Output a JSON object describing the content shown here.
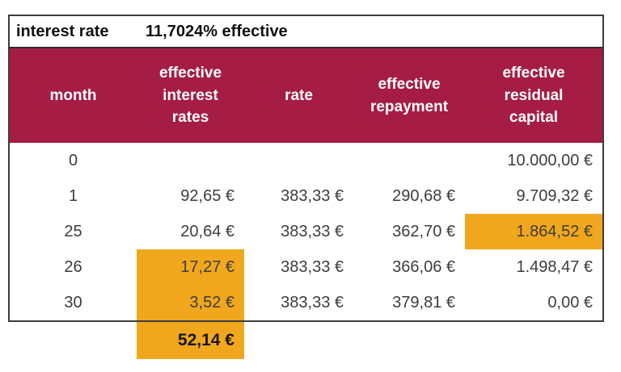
{
  "title_bar": {
    "label": "interest rate",
    "value": "11,7024% effective"
  },
  "colors": {
    "header_bg": "#a51c45",
    "header_text": "#ffffff",
    "highlight": "#f1a71d",
    "border": "#3c3c3c",
    "data_text": "#3d3d3d"
  },
  "table": {
    "headers": {
      "month": "month",
      "interest": "effective\ninterest\nrates",
      "rate": "rate",
      "repayment": "effective\nrepayment",
      "residual": "effective\nresidual\ncapital"
    },
    "rows": [
      {
        "month": "0",
        "interest": "",
        "rate": "",
        "repayment": "",
        "residual": "10.000,00 €"
      },
      {
        "month": "1",
        "interest": "92,65 €",
        "rate": "383,33 €",
        "repayment": "290,68 €",
        "residual": "9.709,32 €"
      },
      {
        "month": "25",
        "interest": "20,64 €",
        "rate": "383,33 €",
        "repayment": "362,70 €",
        "residual": "1.864,52 €"
      },
      {
        "month": "26",
        "interest": "17,27 €",
        "rate": "383,33 €",
        "repayment": "366,06 €",
        "residual": "1.498,47 €"
      },
      {
        "month": "30",
        "interest": "3,52 €",
        "rate": "383,33 €",
        "repayment": "379,81 €",
        "residual": "0,00 €"
      }
    ],
    "highlighted_cells": [
      {
        "row": "25",
        "column": "residual"
      },
      {
        "row": "26",
        "column": "interest"
      },
      {
        "row": "30",
        "column": "interest"
      },
      {
        "row": "total",
        "column": "interest"
      }
    ],
    "summary": {
      "interest_total": "52,14 €"
    }
  }
}
